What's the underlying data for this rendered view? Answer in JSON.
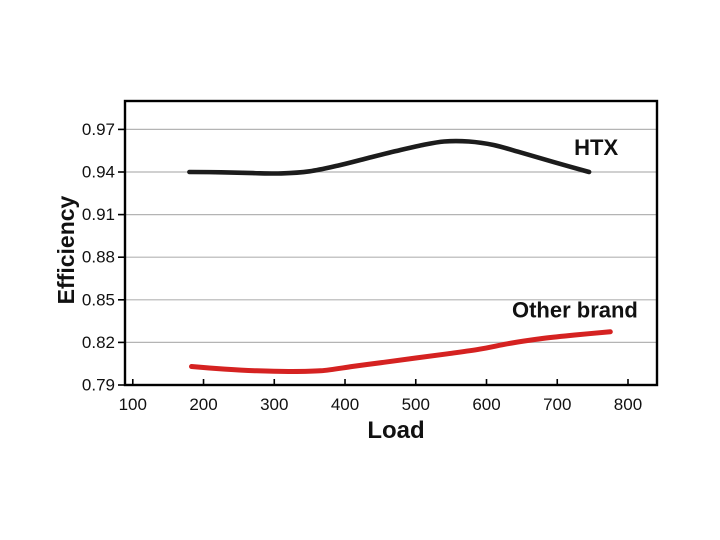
{
  "figure": {
    "background": "#ffffff"
  },
  "chart_data": {
    "type": "line",
    "title": "",
    "xlabel": "Load",
    "ylabel": "Efficiency",
    "xlim": [
      89,
      841
    ],
    "ylim": [
      0.79,
      0.99
    ],
    "x_ticks": [
      100,
      200,
      300,
      400,
      500,
      600,
      700,
      800
    ],
    "y_ticks": [
      0.79,
      0.82,
      0.85,
      0.88,
      0.91,
      0.94,
      0.97
    ],
    "grid": {
      "horizontal": true,
      "vertical": false,
      "color": "#b4b4b4"
    },
    "axis_color": "#000000",
    "tick_label_color": "#1a1a1a",
    "legend_position": "inline-labels",
    "series": [
      {
        "name": "HTX",
        "color": "#1c1c1c",
        "line_width": 4.6,
        "label": {
          "text": "HTX",
          "x": 755,
          "y": 0.9575
        },
        "points": [
          [
            180,
            0.94
          ],
          [
            225,
            0.9398
          ],
          [
            270,
            0.9392
          ],
          [
            310,
            0.939
          ],
          [
            350,
            0.9405
          ],
          [
            390,
            0.9445
          ],
          [
            430,
            0.9495
          ],
          [
            470,
            0.9545
          ],
          [
            505,
            0.9585
          ],
          [
            540,
            0.9615
          ],
          [
            575,
            0.9615
          ],
          [
            610,
            0.959
          ],
          [
            650,
            0.9535
          ],
          [
            695,
            0.947
          ],
          [
            745,
            0.94
          ]
        ]
      },
      {
        "name": "Other brand",
        "color": "#d52221",
        "line_width": 5,
        "label": {
          "text": "Other brand",
          "x": 725,
          "y": 0.843
        },
        "points": [
          [
            183,
            0.803
          ],
          [
            230,
            0.8012
          ],
          [
            275,
            0.8
          ],
          [
            320,
            0.7995
          ],
          [
            365,
            0.8
          ],
          [
            410,
            0.803
          ],
          [
            455,
            0.806
          ],
          [
            500,
            0.809
          ],
          [
            545,
            0.812
          ],
          [
            590,
            0.8152
          ],
          [
            635,
            0.8195
          ],
          [
            680,
            0.8228
          ],
          [
            725,
            0.8252
          ],
          [
            775,
            0.8275
          ]
        ]
      }
    ]
  }
}
